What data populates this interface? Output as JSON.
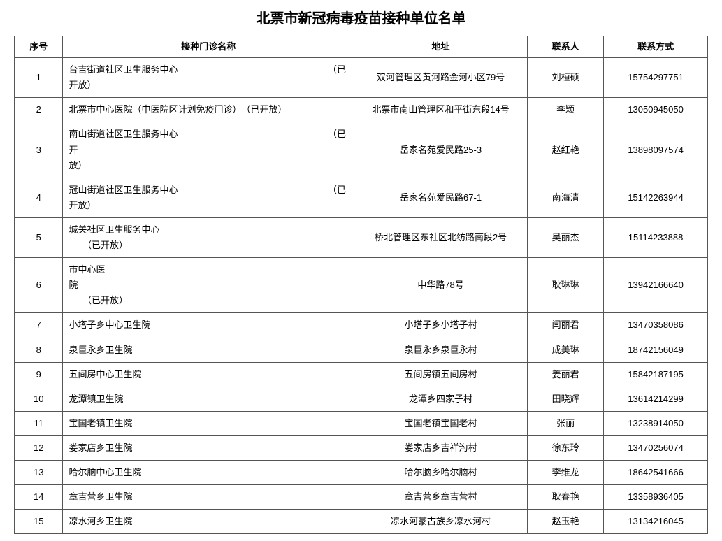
{
  "title": "北票市新冠病毒疫苗接种单位名单",
  "table": {
    "headers": {
      "idx": "序号",
      "name": "接种门诊名称",
      "addr": "地址",
      "contact": "联系人",
      "phone": "联系方式"
    },
    "rows": [
      {
        "idx": "1",
        "name": "台吉街道社区卫生服务中心　　　　　　　　　　　　　　　　　（已\n开放）",
        "addr": "双河管理区黄河路金河小区79号",
        "contact": "刘桓硕",
        "phone": "15754297751",
        "top": true
      },
      {
        "idx": "2",
        "name": "北票市中心医院（中医院区计划免疫门诊）　（已开放）",
        "addr": "北票市南山管理区和平街东段14号",
        "contact": "李颖",
        "phone": "13050945050"
      },
      {
        "idx": "3",
        "name": "南山街道社区卫生服务中心　　　　　　　　　　　　　　　　　（已开\n放）",
        "addr": "岳家名苑爱民路25-3",
        "contact": "赵红艳",
        "phone": "13898097574",
        "top": true
      },
      {
        "idx": "4",
        "name": "冠山街道社区卫生服务中心　　　　　　　　　　　　　　　　　（已\n开放）",
        "addr": "岳家名苑爱民路67-1",
        "contact": "南海清",
        "phone": "15142263944",
        "top": true
      },
      {
        "idx": "5",
        "name": "城关社区卫生服务中心　　　　　　　　　　　　　　　　　　　\n　　（已开放）",
        "addr": "桥北管理区东社区北纺路南段2号",
        "contact": "吴丽杰",
        "phone": "15114233888",
        "top": true
      },
      {
        "idx": "6",
        "name": "市中心医\n院　　　　　　　　　　　　　　　　　　　　　　　　　　　　\n　　（已开放）",
        "addr": "中华路78号",
        "contact": "耿琳琳",
        "phone": "13942166640",
        "top": true
      },
      {
        "idx": "7",
        "name": "小塔子乡中心卫生院",
        "addr": "小塔子乡小塔子村",
        "contact": "闫丽君",
        "phone": "13470358086"
      },
      {
        "idx": "8",
        "name": "泉巨永乡卫生院",
        "addr": "泉巨永乡泉巨永村",
        "contact": "成美琳",
        "phone": "18742156049"
      },
      {
        "idx": "9",
        "name": "五间房中心卫生院",
        "addr": "五间房镇五间房村",
        "contact": "姜丽君",
        "phone": "15842187195"
      },
      {
        "idx": "10",
        "name": "龙潭镇卫生院",
        "addr": "龙潭乡四家子村",
        "contact": "田晓辉",
        "phone": "13614214299"
      },
      {
        "idx": "11",
        "name": "宝国老镇卫生院",
        "addr": "宝国老镇宝国老村",
        "contact": "张丽",
        "phone": "13238914050"
      },
      {
        "idx": "12",
        "name": "娄家店乡卫生院",
        "addr": "娄家店乡吉祥沟村",
        "contact": "徐东玲",
        "phone": "13470256074"
      },
      {
        "idx": "13",
        "name": "哈尔脑中心卫生院",
        "addr": "哈尔脑乡哈尔脑村",
        "contact": "李维龙",
        "phone": "18642541666"
      },
      {
        "idx": "14",
        "name": "章吉营乡卫生院",
        "addr": "章吉营乡章吉营村",
        "contact": "耿春艳",
        "phone": "13358936405"
      },
      {
        "idx": "15",
        "name": "凉水河乡卫生院",
        "addr": "凉水河蒙古族乡凉水河村",
        "contact": "赵玉艳",
        "phone": "13134216045"
      }
    ]
  },
  "style": {
    "title_fontsize_pt": 20,
    "cell_fontsize_pt": 13,
    "border_color": "#555555",
    "background_color": "#ffffff",
    "text_color": "#000000"
  }
}
